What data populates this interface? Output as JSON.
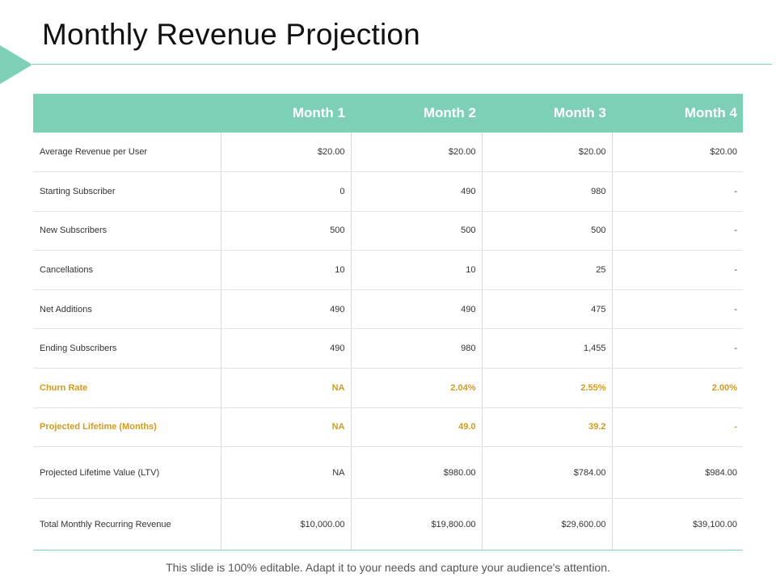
{
  "title": "Monthly Revenue Projection",
  "colors": {
    "accent": "#7dd0b5",
    "highlight": "#d19b1c"
  },
  "table": {
    "headers": [
      "",
      "Month 1",
      "Month 2",
      "Month 3",
      "Month 4"
    ],
    "rows": [
      {
        "label": "Average Revenue per User",
        "values": [
          "$20.00",
          "$20.00",
          "$20.00",
          "$20.00"
        ]
      },
      {
        "label": "Starting Subscriber",
        "values": [
          "0",
          "490",
          "980",
          "-"
        ]
      },
      {
        "label": "New Subscribers",
        "values": [
          "500",
          "500",
          "500",
          "-"
        ]
      },
      {
        "label": "Cancellations",
        "values": [
          "10",
          "10",
          "25",
          "-"
        ]
      },
      {
        "label": "Net Additions",
        "values": [
          "490",
          "490",
          "475",
          "-"
        ]
      },
      {
        "label": "Ending Subscribers",
        "values": [
          "490",
          "980",
          "1,455",
          "-"
        ]
      },
      {
        "label": "Churn Rate",
        "values": [
          "NA",
          "2.04%",
          "2.55%",
          "2.00%"
        ]
      },
      {
        "label": "Projected Lifetime (Months)",
        "values": [
          "NA",
          "49.0",
          "39.2",
          "-"
        ]
      },
      {
        "label": "Projected Lifetime Value (LTV)",
        "values": [
          "NA",
          "$980.00",
          "$784.00",
          "$984.00"
        ]
      },
      {
        "label": "Total Monthly Recurring Revenue",
        "values": [
          "$10,000.00",
          "$19,800.00",
          "$29,600.00",
          "$39,100.00"
        ]
      }
    ]
  },
  "footer": "This slide is 100% editable. Adapt it to your needs and capture your audience's attention."
}
